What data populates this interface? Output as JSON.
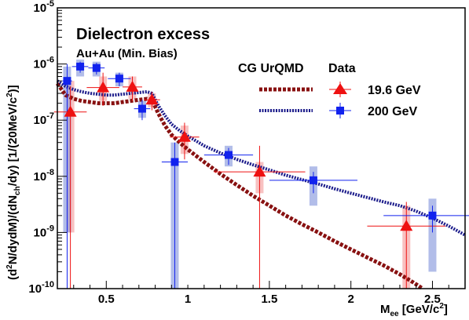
{
  "chart_data": {
    "type": "scatter",
    "title": "Dielectron excess",
    "subtitle": "Au+Au (Min. Bias)",
    "xlabel": {
      "main": "M",
      "sub": "ee",
      "unit": " [GeV/c",
      "sup": "2",
      "close": "]"
    },
    "ylabel": {
      "p1": "(d",
      "sup1": "2",
      "p2": "N/dydM)/(dN",
      "sub": "ch",
      "p3": "/dy) [1/(20MeV/c",
      "sup2": "2",
      "p4": ")]"
    },
    "xlim": [
      0.2,
      2.7
    ],
    "ylim": [
      1e-10,
      1e-05
    ],
    "log_y": true,
    "x_ticks": [
      {
        "v": 0.5,
        "label": "0.5"
      },
      {
        "v": 1.0,
        "label": "1"
      },
      {
        "v": 1.5,
        "label": "1.5"
      },
      {
        "v": 2.0,
        "label": "2"
      },
      {
        "v": 2.5,
        "label": "2.5"
      }
    ],
    "y_ticks": [
      {
        "v": 1e-10,
        "base": "10",
        "exp": "-10"
      },
      {
        "v": 1e-09,
        "base": "10",
        "exp": "-9"
      },
      {
        "v": 1e-08,
        "base": "10",
        "exp": "-8"
      },
      {
        "v": 1e-07,
        "base": "10",
        "exp": "-7"
      },
      {
        "v": 1e-06,
        "base": "10",
        "exp": "-6"
      },
      {
        "v": 1e-05,
        "base": "10",
        "exp": "-5"
      }
    ],
    "legend": {
      "model_header": "CG UrQMD",
      "data_header": "Data",
      "entries": [
        "19.6 GeV",
        "200 GeV"
      ]
    },
    "colors": {
      "red": "#ee1111",
      "blue": "#1122ee",
      "model_red": "#881111",
      "model_blue": "#1a1a8a",
      "sys_red": "#f4a0a0",
      "sys_blue": "#8899dd"
    },
    "series": [
      {
        "name": "19.6 GeV",
        "marker": "triangle",
        "points": [
          {
            "x": 0.28,
            "y": 1.4e-07,
            "xerr": 0.1,
            "ylo": 1e-10,
            "yhi": 4e-07,
            "slo": 1e-09,
            "shi": 5e-07
          },
          {
            "x": 0.48,
            "y": 3.8e-07,
            "xerr": 0.1,
            "ylo": 1.8e-07,
            "yhi": 7e-07,
            "slo": 2.2e-07,
            "shi": 6e-07
          },
          {
            "x": 0.66,
            "y": 3.9e-07,
            "xerr": 0.06,
            "ylo": 2.2e-07,
            "yhi": 6e-07,
            "slo": 2.4e-07,
            "shi": 6e-07
          },
          {
            "x": 0.78,
            "y": 2.3e-07,
            "xerr": 0.05,
            "ylo": 1.5e-07,
            "yhi": 3.2e-07,
            "slo": 1.7e-07,
            "shi": 3e-07
          },
          {
            "x": 0.98,
            "y": 5e-08,
            "xerr": 0.09,
            "ylo": 2e-08,
            "yhi": 9e-08,
            "slo": 2.5e-08,
            "shi": 8e-08
          },
          {
            "x": 1.44,
            "y": 1.2e-08,
            "xerr": 0.28,
            "ylo": 1e-10,
            "yhi": 3.5e-08,
            "slo": 5e-09,
            "shi": 1.8e-08
          },
          {
            "x": 2.34,
            "y": 1.3e-09,
            "xerr": 0.24,
            "ylo": 1e-10,
            "yhi": 3.5e-09,
            "slo": 1e-10,
            "shi": 3e-09
          }
        ]
      },
      {
        "name": "200 GeV",
        "marker": "square",
        "points": [
          {
            "x": 0.26,
            "y": 5e-07,
            "xerr": 0.03,
            "ylo": 1e-10,
            "yhi": 1e-06,
            "slo": 1e-09,
            "shi": 9e-07
          },
          {
            "x": 0.34,
            "y": 9e-07,
            "xerr": 0.05,
            "ylo": 7e-07,
            "yhi": 1.1e-06,
            "slo": 6e-07,
            "shi": 1.2e-06
          },
          {
            "x": 0.44,
            "y": 8.5e-07,
            "xerr": 0.05,
            "ylo": 6.5e-07,
            "yhi": 1.05e-06,
            "slo": 6e-07,
            "shi": 1.1e-06
          },
          {
            "x": 0.58,
            "y": 5.5e-07,
            "xerr": 0.07,
            "ylo": 4e-07,
            "yhi": 7e-07,
            "slo": 4e-07,
            "shi": 7e-07
          },
          {
            "x": 0.72,
            "y": 1.6e-07,
            "xerr": 0.05,
            "ylo": 1e-07,
            "yhi": 2.3e-07,
            "slo": 1.1e-07,
            "shi": 2.2e-07
          },
          {
            "x": 0.92,
            "y": 1.8e-08,
            "xerr": 0.08,
            "ylo": 1e-10,
            "yhi": 4e-08,
            "slo": 1e-10,
            "shi": 4e-08
          },
          {
            "x": 1.25,
            "y": 2.4e-08,
            "xerr": 0.15,
            "ylo": 1.6e-08,
            "yhi": 3.2e-08,
            "slo": 1.5e-08,
            "shi": 3.5e-08
          },
          {
            "x": 1.77,
            "y": 8.5e-09,
            "xerr": 0.27,
            "ylo": 5e-09,
            "yhi": 1.2e-08,
            "slo": 3e-09,
            "shi": 1.5e-08
          },
          {
            "x": 2.5,
            "y": 2e-09,
            "xerr": 0.3,
            "ylo": 1e-09,
            "yhi": 3e-09,
            "slo": 2e-10,
            "shi": 4e-09
          }
        ]
      }
    ],
    "model_curves": [
      {
        "name": "19.6 GeV",
        "points": [
          [
            0.2,
            4.5e-07
          ],
          [
            0.25,
            2.8e-07
          ],
          [
            0.3,
            2.4e-07
          ],
          [
            0.35,
            2.2e-07
          ],
          [
            0.4,
            2.1e-07
          ],
          [
            0.45,
            2e-07
          ],
          [
            0.5,
            2e-07
          ],
          [
            0.55,
            2e-07
          ],
          [
            0.6,
            2.1e-07
          ],
          [
            0.65,
            2.2e-07
          ],
          [
            0.7,
            2.3e-07
          ],
          [
            0.75,
            2.4e-07
          ],
          [
            0.78,
            2.3e-07
          ],
          [
            0.82,
            1.3e-07
          ],
          [
            0.86,
            8e-08
          ],
          [
            0.9,
            5.5e-08
          ],
          [
            0.95,
            4e-08
          ],
          [
            1.0,
            3e-08
          ],
          [
            1.1,
            1.8e-08
          ],
          [
            1.2,
            1.1e-08
          ],
          [
            1.3,
            7e-09
          ],
          [
            1.4,
            4.5e-09
          ],
          [
            1.5,
            3e-09
          ],
          [
            1.6,
            2e-09
          ],
          [
            1.7,
            1.4e-09
          ],
          [
            1.8,
            1e-09
          ],
          [
            1.9,
            7e-10
          ],
          [
            2.0,
            5e-10
          ],
          [
            2.1,
            3.6e-10
          ],
          [
            2.2,
            2.6e-10
          ],
          [
            2.3,
            1.8e-10
          ],
          [
            2.38,
            1.3e-10
          ],
          [
            2.44,
            1e-10
          ]
        ]
      },
      {
        "name": "200 GeV",
        "points": [
          [
            0.2,
            5e-07
          ],
          [
            0.25,
            4e-07
          ],
          [
            0.3,
            3.5e-07
          ],
          [
            0.35,
            3.2e-07
          ],
          [
            0.4,
            3e-07
          ],
          [
            0.45,
            2.9e-07
          ],
          [
            0.5,
            2.8e-07
          ],
          [
            0.55,
            2.8e-07
          ],
          [
            0.6,
            2.9e-07
          ],
          [
            0.65,
            3e-07
          ],
          [
            0.7,
            3.1e-07
          ],
          [
            0.75,
            3.2e-07
          ],
          [
            0.78,
            3e-07
          ],
          [
            0.82,
            1.8e-07
          ],
          [
            0.86,
            1.2e-07
          ],
          [
            0.9,
            8.5e-08
          ],
          [
            0.95,
            6.5e-08
          ],
          [
            1.0,
            5.2e-08
          ],
          [
            1.1,
            3.5e-08
          ],
          [
            1.2,
            2.6e-08
          ],
          [
            1.3,
            2e-08
          ],
          [
            1.4,
            1.6e-08
          ],
          [
            1.5,
            1.3e-08
          ],
          [
            1.6,
            1.05e-08
          ],
          [
            1.7,
            8.7e-09
          ],
          [
            1.8,
            7.3e-09
          ],
          [
            1.9,
            6e-09
          ],
          [
            2.0,
            5e-09
          ],
          [
            2.1,
            4.2e-09
          ],
          [
            2.2,
            3.5e-09
          ],
          [
            2.3,
            3e-09
          ],
          [
            2.4,
            2.4e-09
          ],
          [
            2.5,
            1.8e-09
          ],
          [
            2.6,
            1.3e-09
          ],
          [
            2.7,
            9e-10
          ]
        ]
      }
    ]
  }
}
